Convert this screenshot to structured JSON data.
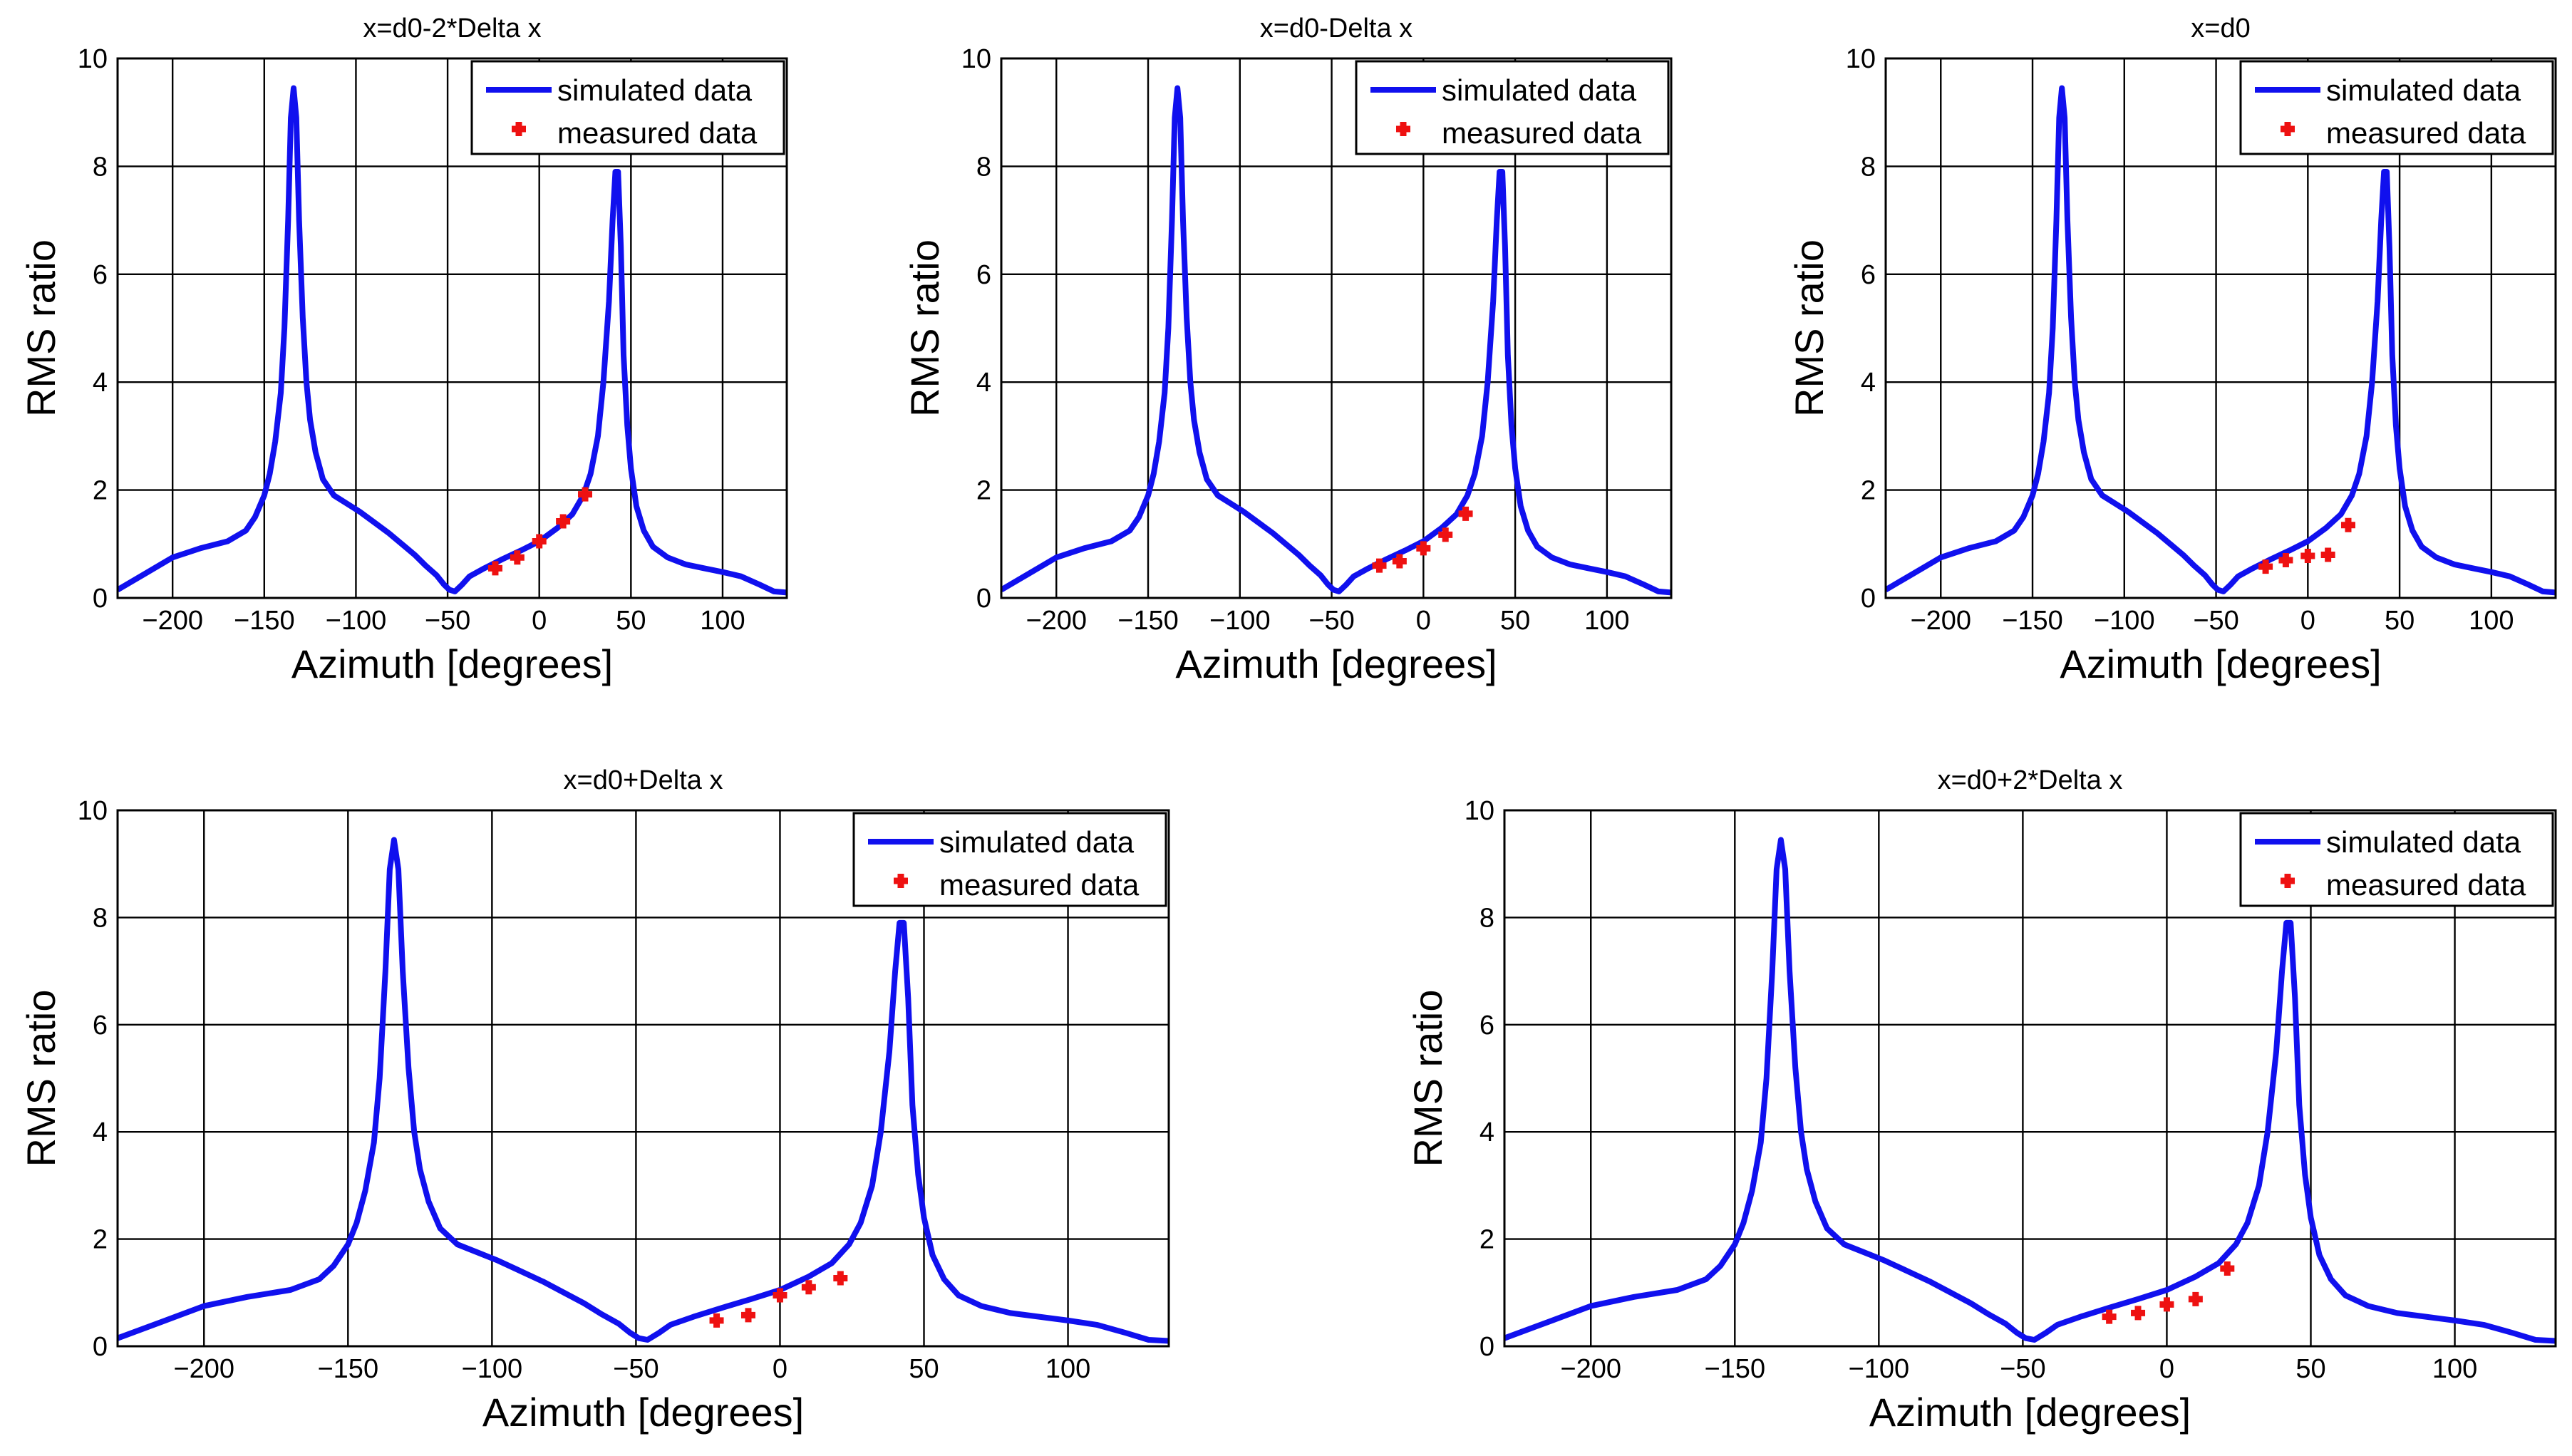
{
  "chart_data": [
    {
      "type": "line",
      "title": "x=d0-2*Delta x",
      "xlabel": "Azimuth [degrees]",
      "ylabel": "RMS ratio",
      "xlim": [
        -230,
        135
      ],
      "ylim": [
        0,
        10
      ],
      "xticks": [
        -200,
        -150,
        -100,
        -50,
        0,
        50,
        100
      ],
      "xtick_labels": [
        "−200",
        "−150",
        "−100",
        "−50",
        "0",
        "50",
        "100"
      ],
      "yticks": [
        0,
        2,
        4,
        6,
        8,
        10
      ],
      "ytick_labels": [
        "0",
        "2",
        "4",
        "6",
        "8",
        "10"
      ],
      "grid": true,
      "legend_position": "top-right",
      "series": [
        {
          "name": "simulated data",
          "style": "line",
          "color": "#1010ee",
          "x": [
            -230,
            -215,
            -200,
            -185,
            -170,
            -160,
            -155,
            -150,
            -147,
            -144,
            -141,
            -139,
            -137,
            -135.5,
            -134,
            -132.5,
            -131,
            -129,
            -127,
            -125,
            -122,
            -118,
            -112,
            -105,
            -98,
            -90,
            -82,
            -75,
            -68,
            -62,
            -56,
            -52,
            -49,
            -46,
            -42,
            -38,
            -30,
            -20,
            -10,
            0,
            10,
            18,
            24,
            28,
            32,
            35,
            38,
            40,
            41.5,
            43,
            44.5,
            46,
            48,
            50,
            53,
            57,
            62,
            70,
            80,
            90,
            100,
            110,
            120,
            128,
            135
          ],
          "y": [
            0.15,
            0.45,
            0.75,
            0.92,
            1.05,
            1.25,
            1.5,
            1.9,
            2.3,
            2.9,
            3.8,
            5.0,
            7.0,
            8.9,
            9.45,
            8.9,
            7.0,
            5.2,
            4.0,
            3.3,
            2.7,
            2.2,
            1.9,
            1.75,
            1.6,
            1.4,
            1.2,
            1.0,
            0.8,
            0.6,
            0.42,
            0.25,
            0.15,
            0.12,
            0.25,
            0.4,
            0.55,
            0.72,
            0.88,
            1.05,
            1.3,
            1.55,
            1.9,
            2.3,
            3.0,
            4.0,
            5.5,
            7.0,
            7.9,
            7.9,
            6.5,
            4.5,
            3.2,
            2.4,
            1.7,
            1.25,
            0.95,
            0.75,
            0.62,
            0.55,
            0.48,
            0.4,
            0.25,
            0.12,
            0.1
          ]
        },
        {
          "name": "measured data",
          "style": "markers",
          "color": "#ee1111",
          "x": [
            -24,
            -12,
            0,
            13,
            25
          ],
          "y": [
            0.55,
            0.75,
            1.05,
            1.42,
            1.92
          ]
        }
      ]
    },
    {
      "type": "line",
      "title": "x=d0-Delta x",
      "xlabel": "Azimuth [degrees]",
      "ylabel": "RMS ratio",
      "xlim": [
        -230,
        135
      ],
      "ylim": [
        0,
        10
      ],
      "xticks": [
        -200,
        -150,
        -100,
        -50,
        0,
        50,
        100
      ],
      "xtick_labels": [
        "−200",
        "−150",
        "−100",
        "−50",
        "0",
        "50",
        "100"
      ],
      "yticks": [
        0,
        2,
        4,
        6,
        8,
        10
      ],
      "ytick_labels": [
        "0",
        "2",
        "4",
        "6",
        "8",
        "10"
      ],
      "grid": true,
      "legend_position": "top-right",
      "series": [
        {
          "name": "simulated data",
          "style": "line",
          "color": "#1010ee",
          "x": [
            -230,
            -215,
            -200,
            -185,
            -170,
            -160,
            -155,
            -150,
            -147,
            -144,
            -141,
            -139,
            -137,
            -135.5,
            -134,
            -132.5,
            -131,
            -129,
            -127,
            -125,
            -122,
            -118,
            -112,
            -105,
            -98,
            -90,
            -82,
            -75,
            -68,
            -62,
            -56,
            -52,
            -49,
            -46,
            -42,
            -38,
            -30,
            -20,
            -10,
            0,
            10,
            18,
            24,
            28,
            32,
            35,
            38,
            40,
            41.5,
            43,
            44.5,
            46,
            48,
            50,
            53,
            57,
            62,
            70,
            80,
            90,
            100,
            110,
            120,
            128,
            135
          ],
          "y": [
            0.15,
            0.45,
            0.75,
            0.92,
            1.05,
            1.25,
            1.5,
            1.9,
            2.3,
            2.9,
            3.8,
            5.0,
            7.0,
            8.9,
            9.45,
            8.9,
            7.0,
            5.2,
            4.0,
            3.3,
            2.7,
            2.2,
            1.9,
            1.75,
            1.6,
            1.4,
            1.2,
            1.0,
            0.8,
            0.6,
            0.42,
            0.25,
            0.15,
            0.12,
            0.25,
            0.4,
            0.55,
            0.72,
            0.88,
            1.05,
            1.3,
            1.55,
            1.9,
            2.3,
            3.0,
            4.0,
            5.5,
            7.0,
            7.9,
            7.9,
            6.5,
            4.5,
            3.2,
            2.4,
            1.7,
            1.25,
            0.95,
            0.75,
            0.62,
            0.55,
            0.48,
            0.4,
            0.25,
            0.12,
            0.1
          ]
        },
        {
          "name": "measured data",
          "style": "markers",
          "color": "#ee1111",
          "x": [
            -24,
            -13,
            0,
            12,
            23
          ],
          "y": [
            0.6,
            0.68,
            0.92,
            1.17,
            1.56
          ]
        }
      ]
    },
    {
      "type": "line",
      "title": "x=d0",
      "xlabel": "Azimuth [degrees]",
      "ylabel": "RMS ratio",
      "xlim": [
        -230,
        135
      ],
      "ylim": [
        0,
        10
      ],
      "xticks": [
        -200,
        -150,
        -100,
        -50,
        0,
        50,
        100
      ],
      "xtick_labels": [
        "−200",
        "−150",
        "−100",
        "−50",
        "0",
        "50",
        "100"
      ],
      "yticks": [
        0,
        2,
        4,
        6,
        8,
        10
      ],
      "ytick_labels": [
        "0",
        "2",
        "4",
        "6",
        "8",
        "10"
      ],
      "grid": true,
      "legend_position": "top-right",
      "series": [
        {
          "name": "simulated data",
          "style": "line",
          "color": "#1010ee",
          "x": [
            -230,
            -215,
            -200,
            -185,
            -170,
            -160,
            -155,
            -150,
            -147,
            -144,
            -141,
            -139,
            -137,
            -135.5,
            -134,
            -132.5,
            -131,
            -129,
            -127,
            -125,
            -122,
            -118,
            -112,
            -105,
            -98,
            -90,
            -82,
            -75,
            -68,
            -62,
            -56,
            -52,
            -49,
            -46,
            -42,
            -38,
            -30,
            -20,
            -10,
            0,
            10,
            18,
            24,
            28,
            32,
            35,
            38,
            40,
            41.5,
            43,
            44.5,
            46,
            48,
            50,
            53,
            57,
            62,
            70,
            80,
            90,
            100,
            110,
            120,
            128,
            135
          ],
          "y": [
            0.15,
            0.45,
            0.75,
            0.92,
            1.05,
            1.25,
            1.5,
            1.9,
            2.3,
            2.9,
            3.8,
            5.0,
            7.0,
            8.9,
            9.45,
            8.9,
            7.0,
            5.2,
            4.0,
            3.3,
            2.7,
            2.2,
            1.9,
            1.75,
            1.6,
            1.4,
            1.2,
            1.0,
            0.8,
            0.6,
            0.42,
            0.25,
            0.15,
            0.12,
            0.25,
            0.4,
            0.55,
            0.72,
            0.88,
            1.05,
            1.3,
            1.55,
            1.9,
            2.3,
            3.0,
            4.0,
            5.5,
            7.0,
            7.9,
            7.9,
            6.5,
            4.5,
            3.2,
            2.4,
            1.7,
            1.25,
            0.95,
            0.75,
            0.62,
            0.55,
            0.48,
            0.4,
            0.25,
            0.12,
            0.1
          ]
        },
        {
          "name": "measured data",
          "style": "markers",
          "color": "#ee1111",
          "x": [
            -23,
            -12,
            0,
            11,
            22
          ],
          "y": [
            0.58,
            0.7,
            0.78,
            0.8,
            1.35
          ]
        }
      ]
    },
    {
      "type": "line",
      "title": "x=d0+Delta x",
      "xlabel": "Azimuth [degrees]",
      "ylabel": "RMS ratio",
      "xlim": [
        -230,
        135
      ],
      "ylim": [
        0,
        10
      ],
      "xticks": [
        -200,
        -150,
        -100,
        -50,
        0,
        50,
        100
      ],
      "xtick_labels": [
        "−200",
        "−150",
        "−100",
        "−50",
        "0",
        "50",
        "100"
      ],
      "yticks": [
        0,
        2,
        4,
        6,
        8,
        10
      ],
      "ytick_labels": [
        "0",
        "2",
        "4",
        "6",
        "8",
        "10"
      ],
      "grid": true,
      "legend_position": "top-right",
      "series": [
        {
          "name": "simulated data",
          "style": "line",
          "color": "#1010ee",
          "x": [
            -230,
            -215,
            -200,
            -185,
            -170,
            -160,
            -155,
            -150,
            -147,
            -144,
            -141,
            -139,
            -137,
            -135.5,
            -134,
            -132.5,
            -131,
            -129,
            -127,
            -125,
            -122,
            -118,
            -112,
            -105,
            -98,
            -90,
            -82,
            -75,
            -68,
            -62,
            -56,
            -52,
            -49,
            -46,
            -42,
            -38,
            -30,
            -20,
            -10,
            0,
            10,
            18,
            24,
            28,
            32,
            35,
            38,
            40,
            41.5,
            43,
            44.5,
            46,
            48,
            50,
            53,
            57,
            62,
            70,
            80,
            90,
            100,
            110,
            120,
            128,
            135
          ],
          "y": [
            0.15,
            0.45,
            0.75,
            0.92,
            1.05,
            1.25,
            1.5,
            1.9,
            2.3,
            2.9,
            3.8,
            5.0,
            7.0,
            8.9,
            9.45,
            8.9,
            7.0,
            5.2,
            4.0,
            3.3,
            2.7,
            2.2,
            1.9,
            1.75,
            1.6,
            1.4,
            1.2,
            1.0,
            0.8,
            0.6,
            0.42,
            0.25,
            0.15,
            0.12,
            0.25,
            0.4,
            0.55,
            0.72,
            0.88,
            1.05,
            1.3,
            1.55,
            1.9,
            2.3,
            3.0,
            4.0,
            5.5,
            7.0,
            7.9,
            7.9,
            6.5,
            4.5,
            3.2,
            2.4,
            1.7,
            1.25,
            0.95,
            0.75,
            0.62,
            0.55,
            0.48,
            0.4,
            0.25,
            0.12,
            0.1
          ]
        },
        {
          "name": "measured data",
          "style": "markers",
          "color": "#ee1111",
          "x": [
            -22,
            -11,
            0,
            10,
            21
          ],
          "y": [
            0.48,
            0.58,
            0.95,
            1.1,
            1.27
          ]
        }
      ]
    },
    {
      "type": "line",
      "title": "x=d0+2*Delta x",
      "xlabel": "Azimuth [degrees]",
      "ylabel": "RMS ratio",
      "xlim": [
        -230,
        135
      ],
      "ylim": [
        0,
        10
      ],
      "xticks": [
        -200,
        -150,
        -100,
        -50,
        0,
        50,
        100
      ],
      "xtick_labels": [
        "−200",
        "−150",
        "−100",
        "−50",
        "0",
        "50",
        "100"
      ],
      "yticks": [
        0,
        2,
        4,
        6,
        8,
        10
      ],
      "ytick_labels": [
        "0",
        "2",
        "4",
        "6",
        "8",
        "10"
      ],
      "grid": true,
      "legend_position": "top-right",
      "series": [
        {
          "name": "simulated data",
          "style": "line",
          "color": "#1010ee",
          "x": [
            -230,
            -215,
            -200,
            -185,
            -170,
            -160,
            -155,
            -150,
            -147,
            -144,
            -141,
            -139,
            -137,
            -135.5,
            -134,
            -132.5,
            -131,
            -129,
            -127,
            -125,
            -122,
            -118,
            -112,
            -105,
            -98,
            -90,
            -82,
            -75,
            -68,
            -62,
            -56,
            -52,
            -49,
            -46,
            -42,
            -38,
            -30,
            -20,
            -10,
            0,
            10,
            18,
            24,
            28,
            32,
            35,
            38,
            40,
            41.5,
            43,
            44.5,
            46,
            48,
            50,
            53,
            57,
            62,
            70,
            80,
            90,
            100,
            110,
            120,
            128,
            135
          ],
          "y": [
            0.15,
            0.45,
            0.75,
            0.92,
            1.05,
            1.25,
            1.5,
            1.9,
            2.3,
            2.9,
            3.8,
            5.0,
            7.0,
            8.9,
            9.45,
            8.9,
            7.0,
            5.2,
            4.0,
            3.3,
            2.7,
            2.2,
            1.9,
            1.75,
            1.6,
            1.4,
            1.2,
            1.0,
            0.8,
            0.6,
            0.42,
            0.25,
            0.15,
            0.12,
            0.25,
            0.4,
            0.55,
            0.72,
            0.88,
            1.05,
            1.3,
            1.55,
            1.9,
            2.3,
            3.0,
            4.0,
            5.5,
            7.0,
            7.9,
            7.9,
            6.5,
            4.5,
            3.2,
            2.4,
            1.7,
            1.25,
            0.95,
            0.75,
            0.62,
            0.55,
            0.48,
            0.4,
            0.25,
            0.12,
            0.1
          ]
        },
        {
          "name": "measured data",
          "style": "markers",
          "color": "#ee1111",
          "x": [
            -20,
            -10,
            0,
            10,
            21
          ],
          "y": [
            0.55,
            0.62,
            0.78,
            0.88,
            1.45
          ]
        }
      ]
    }
  ]
}
